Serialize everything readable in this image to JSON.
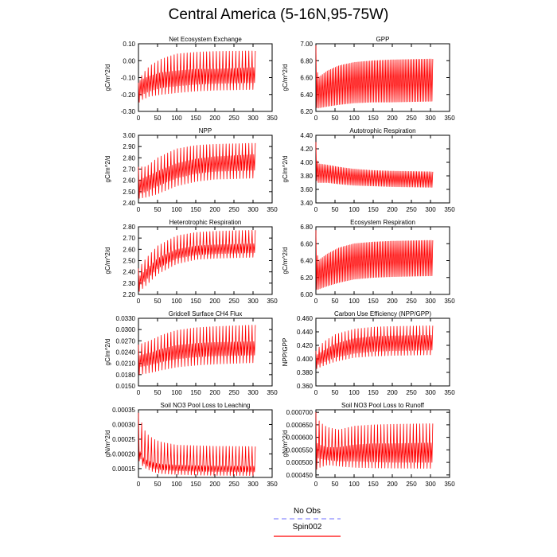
{
  "page": {
    "title": "Central America (5-16N,95-75W)"
  },
  "colors": {
    "model_line": "#ff0000",
    "obs_line": "#8c8cff",
    "axis": "#000000"
  },
  "legend": {
    "obs_label": "No Obs",
    "model_label": "Spin002"
  },
  "chart_data": [
    {
      "type": "line",
      "title": "Net Ecosystem Exchange",
      "xlabel": "",
      "ylabel": "gC/m^2/d",
      "xlim": [
        0,
        350
      ],
      "xticks": [
        0,
        50,
        100,
        150,
        200,
        250,
        300,
        350
      ],
      "ylim": [
        -0.3,
        0.1
      ],
      "yticks": [
        -0.3,
        -0.2,
        -0.1,
        0.0,
        0.1
      ],
      "ytick_labels": [
        "-0.30",
        "-0.20",
        "-0.10",
        "0.00",
        "0.10"
      ],
      "series": [
        {
          "x_end": 306,
          "cycles": 72,
          "envelope_years": [
            0,
            10,
            30,
            60,
            100,
            150,
            200,
            306
          ],
          "upper": [
            -0.13,
            -0.08,
            -0.03,
            0.01,
            0.04,
            0.05,
            0.055,
            0.058
          ],
          "lower": [
            -0.25,
            -0.23,
            -0.21,
            -0.2,
            -0.19,
            -0.18,
            -0.175,
            -0.17
          ],
          "inner_upper": [
            -0.12,
            -0.11,
            -0.09,
            -0.07,
            -0.06,
            -0.05,
            -0.05,
            -0.04
          ],
          "inner_lower": [
            -0.22,
            -0.2,
            -0.18,
            -0.16,
            -0.15,
            -0.14,
            -0.135,
            -0.13
          ]
        }
      ]
    },
    {
      "type": "line",
      "title": "GPP",
      "xlabel": "",
      "ylabel": "gC/m^2/d",
      "xlim": [
        0,
        350
      ],
      "xticks": [
        0,
        50,
        100,
        150,
        200,
        250,
        300,
        350
      ],
      "ylim": [
        6.2,
        7.0
      ],
      "yticks": [
        6.2,
        6.4,
        6.6,
        6.8,
        7.0
      ],
      "ytick_labels": [
        "6.20",
        "6.40",
        "6.60",
        "6.80",
        "7.00"
      ],
      "series": [
        {
          "x_end": 306,
          "cycles": 72,
          "envelope_years": [
            0,
            3,
            6,
            30,
            60,
            100,
            150,
            200,
            306
          ],
          "upper": [
            6.98,
            6.7,
            6.6,
            6.68,
            6.74,
            6.78,
            6.8,
            6.81,
            6.82
          ],
          "lower": [
            6.3,
            6.22,
            6.24,
            6.26,
            6.28,
            6.3,
            6.31,
            6.31,
            6.32
          ]
        }
      ]
    },
    {
      "type": "line",
      "title": "NPP",
      "xlabel": "",
      "ylabel": "gC/m^2/d",
      "xlim": [
        0,
        350
      ],
      "xticks": [
        0,
        50,
        100,
        150,
        200,
        250,
        300,
        350
      ],
      "ylim": [
        2.4,
        3.0
      ],
      "yticks": [
        2.4,
        2.5,
        2.6,
        2.7,
        2.8,
        2.9,
        3.0
      ],
      "ytick_labels": [
        "2.40",
        "2.50",
        "2.60",
        "2.70",
        "2.80",
        "2.90",
        "3.00"
      ],
      "series": [
        {
          "x_end": 306,
          "cycles": 72,
          "envelope_years": [
            0,
            20,
            50,
            100,
            150,
            200,
            306
          ],
          "upper": [
            2.72,
            2.72,
            2.8,
            2.88,
            2.91,
            2.92,
            2.93
          ],
          "lower": [
            2.44,
            2.45,
            2.48,
            2.55,
            2.59,
            2.61,
            2.62
          ],
          "inner_upper": [
            2.6,
            2.63,
            2.68,
            2.75,
            2.79,
            2.81,
            2.83
          ],
          "inner_lower": [
            2.48,
            2.5,
            2.55,
            2.62,
            2.66,
            2.68,
            2.69
          ]
        }
      ]
    },
    {
      "type": "line",
      "title": "Autotrophic Respiration",
      "xlabel": "",
      "ylabel": "gC/m^2/d",
      "xlim": [
        0,
        350
      ],
      "xticks": [
        0,
        50,
        100,
        150,
        200,
        250,
        300,
        350
      ],
      "ylim": [
        3.4,
        4.4
      ],
      "yticks": [
        3.4,
        3.6,
        3.8,
        4.0,
        4.2,
        4.4
      ],
      "ytick_labels": [
        "3.40",
        "3.60",
        "3.80",
        "4.00",
        "4.20",
        "4.40"
      ],
      "series": [
        {
          "x_end": 306,
          "cycles": 72,
          "envelope_years": [
            0,
            3,
            6,
            30,
            60,
            100,
            150,
            200,
            306
          ],
          "upper": [
            4.3,
            4.05,
            3.98,
            3.96,
            3.93,
            3.9,
            3.88,
            3.87,
            3.86
          ],
          "lower": [
            3.75,
            3.72,
            3.7,
            3.7,
            3.68,
            3.66,
            3.65,
            3.64,
            3.63
          ]
        }
      ]
    },
    {
      "type": "line",
      "title": "Heterotrophic Respiration",
      "xlabel": "",
      "ylabel": "gC/m^2/d",
      "xlim": [
        0,
        350
      ],
      "xticks": [
        0,
        50,
        100,
        150,
        200,
        250,
        300,
        350
      ],
      "ylim": [
        2.2,
        2.8
      ],
      "yticks": [
        2.2,
        2.3,
        2.4,
        2.5,
        2.6,
        2.7,
        2.8
      ],
      "ytick_labels": [
        "2.20",
        "2.30",
        "2.40",
        "2.50",
        "2.60",
        "2.70",
        "2.80"
      ],
      "series": [
        {
          "x_end": 306,
          "cycles": 72,
          "envelope_years": [
            0,
            20,
            50,
            100,
            150,
            200,
            306
          ],
          "upper": [
            2.43,
            2.52,
            2.63,
            2.72,
            2.75,
            2.76,
            2.77
          ],
          "lower": [
            2.22,
            2.28,
            2.38,
            2.47,
            2.51,
            2.52,
            2.53
          ],
          "inner_upper": [
            2.35,
            2.42,
            2.52,
            2.6,
            2.63,
            2.64,
            2.65
          ],
          "inner_lower": [
            2.27,
            2.33,
            2.43,
            2.52,
            2.55,
            2.56,
            2.57
          ]
        }
      ]
    },
    {
      "type": "line",
      "title": "Ecosystem Respiration",
      "xlabel": "",
      "ylabel": "gC/m^2/d",
      "xlim": [
        0,
        350
      ],
      "xticks": [
        0,
        50,
        100,
        150,
        200,
        250,
        300,
        350
      ],
      "ylim": [
        6.0,
        6.8
      ],
      "yticks": [
        6.0,
        6.2,
        6.4,
        6.6,
        6.8
      ],
      "ytick_labels": [
        "6.00",
        "6.20",
        "6.40",
        "6.60",
        "6.80"
      ],
      "series": [
        {
          "x_end": 306,
          "cycles": 72,
          "envelope_years": [
            0,
            3,
            6,
            30,
            60,
            100,
            150,
            200,
            306
          ],
          "upper": [
            6.76,
            6.5,
            6.4,
            6.48,
            6.55,
            6.6,
            6.62,
            6.63,
            6.64
          ],
          "lower": [
            6.1,
            6.04,
            6.06,
            6.1,
            6.14,
            6.18,
            6.2,
            6.21,
            6.22
          ]
        }
      ]
    },
    {
      "type": "line",
      "title": "Gridcell Surface CH4 Flux",
      "xlabel": "",
      "ylabel": "gC/m^2/d",
      "xlim": [
        0,
        350
      ],
      "xticks": [
        0,
        50,
        100,
        150,
        200,
        250,
        300,
        350
      ],
      "ylim": [
        0.015,
        0.033
      ],
      "yticks": [
        0.015,
        0.018,
        0.021,
        0.024,
        0.027,
        0.03,
        0.033
      ],
      "ytick_labels": [
        "0.0150",
        "0.0180",
        "0.0210",
        "0.0240",
        "0.0270",
        "0.0300",
        "0.0330"
      ],
      "series": [
        {
          "x_end": 306,
          "cycles": 72,
          "envelope_years": [
            0,
            30,
            60,
            100,
            150,
            200,
            306
          ],
          "upper": [
            0.026,
            0.027,
            0.0285,
            0.0298,
            0.0305,
            0.0308,
            0.0312
          ],
          "lower": [
            0.018,
            0.0185,
            0.0192,
            0.02,
            0.0205,
            0.0208,
            0.0212
          ],
          "inner_upper": [
            0.023,
            0.0238,
            0.0248,
            0.0258,
            0.0263,
            0.0266,
            0.0268
          ],
          "inner_lower": [
            0.02,
            0.0206,
            0.0214,
            0.0222,
            0.0227,
            0.023,
            0.0232
          ]
        }
      ]
    },
    {
      "type": "line",
      "title": "Carbon Use Efficiency (NPP/GPP)",
      "xlabel": "",
      "ylabel": "NPP/GPP",
      "xlim": [
        0,
        350
      ],
      "xticks": [
        0,
        50,
        100,
        150,
        200,
        250,
        300,
        350
      ],
      "ylim": [
        0.36,
        0.46
      ],
      "yticks": [
        0.36,
        0.38,
        0.4,
        0.42,
        0.44,
        0.46
      ],
      "ytick_labels": [
        "0.360",
        "0.380",
        "0.400",
        "0.420",
        "0.440",
        "0.460"
      ],
      "series": [
        {
          "x_end": 306,
          "cycles": 72,
          "envelope_years": [
            0,
            20,
            50,
            100,
            150,
            200,
            306
          ],
          "upper": [
            0.412,
            0.425,
            0.436,
            0.444,
            0.447,
            0.448,
            0.449
          ],
          "lower": [
            0.385,
            0.39,
            0.396,
            0.402,
            0.404,
            0.405,
            0.406
          ],
          "inner_upper": [
            0.405,
            0.412,
            0.422,
            0.43,
            0.433,
            0.434,
            0.435
          ],
          "inner_lower": [
            0.39,
            0.395,
            0.402,
            0.408,
            0.411,
            0.412,
            0.413
          ]
        }
      ]
    },
    {
      "type": "line",
      "title": "Soil NO3 Pool Loss to Leaching",
      "xlabel": "",
      "ylabel": "gN/m^2/d",
      "xlim": [
        0,
        350
      ],
      "xticks": [
        0,
        50,
        100,
        150,
        200,
        250,
        300,
        350
      ],
      "ylim": [
        0.00012,
        0.00035
      ],
      "yticks": [
        0.00015,
        0.0002,
        0.00025,
        0.0003,
        0.00035
      ],
      "ytick_labels": [
        "0.00015",
        "0.00020",
        "0.00025",
        "0.00030",
        "0.00035"
      ],
      "series": [
        {
          "x_end": 306,
          "cycles": 72,
          "envelope_years": [
            0,
            10,
            20,
            40,
            60,
            100,
            150,
            200,
            306
          ],
          "upper": [
            0.00034,
            0.0003,
            0.00027,
            0.00025,
            0.00024,
            0.00023,
            0.000228,
            0.000226,
            0.000225
          ],
          "lower": [
            0.00018,
            0.00016,
            0.00015,
            0.000138,
            0.000133,
            0.00013,
            0.000128,
            0.000127,
            0.000126
          ],
          "inner_upper": [
            0.00022,
            0.00019,
            0.00018,
            0.00017,
            0.000165,
            0.000162,
            0.00016,
            0.000159,
            0.000158
          ],
          "inner_lower": [
            0.0002,
            0.000172,
            0.00016,
            0.00015,
            0.000146,
            0.000143,
            0.000141,
            0.00014,
            0.000139
          ]
        }
      ]
    },
    {
      "type": "line",
      "title": "Soil NO3 Pool Loss to Runoff",
      "xlabel": "",
      "ylabel": "gN/m^2/d",
      "xlim": [
        0,
        350
      ],
      "xticks": [
        0,
        50,
        100,
        150,
        200,
        250,
        300,
        350
      ],
      "ylim": [
        0.00044,
        0.00071
      ],
      "yticks": [
        0.00045,
        0.0005,
        0.00055,
        0.0006,
        0.00065,
        0.0007
      ],
      "ytick_labels": [
        "0.000450",
        "0.000500",
        "0.000550",
        "0.000600",
        "0.000650",
        "0.000700"
      ],
      "series": [
        {
          "x_end": 306,
          "cycles": 72,
          "envelope_years": [
            0,
            10,
            30,
            60,
            100,
            150,
            200,
            306
          ],
          "upper": [
            0.0007,
            0.00066,
            0.00064,
            0.00063,
            0.000645,
            0.00065,
            0.000652,
            0.000655
          ],
          "lower": [
            0.00047,
            0.00048,
            0.00049,
            0.000485,
            0.00048,
            0.000478,
            0.000477,
            0.000476
          ],
          "inner_upper": [
            0.00058,
            0.00057,
            0.00056,
            0.00056,
            0.00057,
            0.000575,
            0.000575,
            0.000578
          ],
          "inner_lower": [
            0.00052,
            0.000515,
            0.00051,
            0.000505,
            0.000505,
            0.000502,
            0.0005,
            0.0005
          ]
        }
      ]
    }
  ]
}
